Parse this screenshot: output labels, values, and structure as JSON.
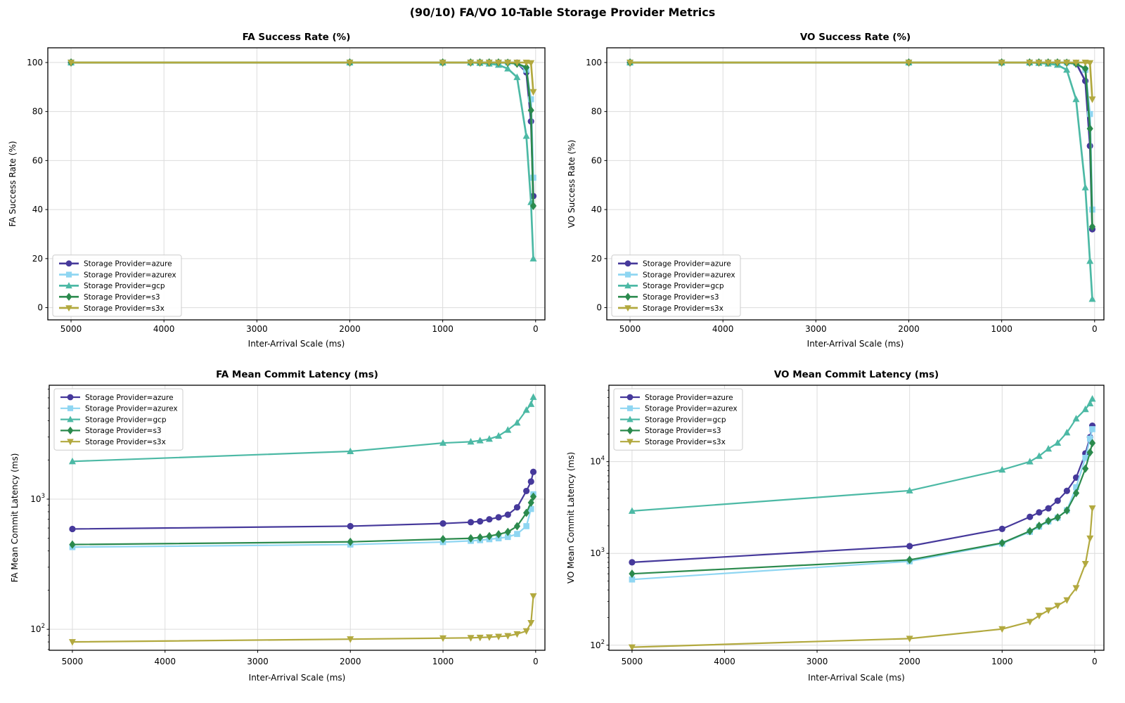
{
  "figure": {
    "suptitle": "(90/10) FA/VO 10-Table Storage Provider Metrics",
    "background": "#ffffff"
  },
  "style": {
    "grid_color": "#dcdcdc",
    "spine_color": "#000000",
    "legend_border": "#cccccc",
    "legend_bg": "#ffffff"
  },
  "series_style": [
    {
      "key": "azure",
      "label": "Storage Provider=azure",
      "color": "#46399B",
      "marker": "circle"
    },
    {
      "key": "azurex",
      "label": "Storage Provider=azurex",
      "color": "#8FD6F2",
      "marker": "square"
    },
    {
      "key": "gcp",
      "label": "Storage Provider=gcp",
      "color": "#4CB9A5",
      "marker": "triangle_up"
    },
    {
      "key": "s3",
      "label": "Storage Provider=s3",
      "color": "#2B8A4D",
      "marker": "diamond"
    },
    {
      "key": "s3x",
      "label": "Storage Provider=s3x",
      "color": "#B2A93F",
      "marker": "triangle_down"
    }
  ],
  "chart_data": [
    {
      "type": "line",
      "title": "FA Success Rate (%)",
      "xlabel": "Inter-Arrival Scale (ms)",
      "ylabel": "FA Success Rate (%)",
      "yscale": "linear",
      "ylim": [
        -5,
        106
      ],
      "yticks": [
        0,
        20,
        40,
        60,
        80,
        100
      ],
      "xlim": [
        5250,
        -100
      ],
      "xticks": [
        5000,
        4000,
        3000,
        2000,
        1000,
        0
      ],
      "x_inverted": true,
      "grid": true,
      "legend_position": "lower-left",
      "x": [
        5000,
        2000,
        1000,
        700,
        600,
        500,
        400,
        300,
        200,
        100,
        50,
        25
      ],
      "series": [
        {
          "name": "Storage Provider=azure",
          "key": "azure",
          "values": [
            100,
            100,
            100,
            100,
            100,
            100,
            100,
            100,
            99.9,
            96,
            76,
            45.5
          ]
        },
        {
          "name": "Storage Provider=azurex",
          "key": "azurex",
          "values": [
            100,
            100,
            100,
            100,
            100,
            100,
            100,
            100,
            99.9,
            97,
            85,
            53
          ]
        },
        {
          "name": "Storage Provider=gcp",
          "key": "gcp",
          "values": [
            100,
            100,
            100,
            100,
            99.8,
            99.5,
            99,
            97.5,
            94,
            70,
            43,
            20
          ]
        },
        {
          "name": "Storage Provider=s3",
          "key": "s3",
          "values": [
            100,
            100,
            100,
            100,
            100,
            100,
            100,
            99.9,
            99.5,
            98,
            80.5,
            41.5
          ]
        },
        {
          "name": "Storage Provider=s3x",
          "key": "s3x",
          "values": [
            100,
            100,
            100,
            100,
            100,
            100,
            100,
            100,
            100,
            100,
            99.8,
            88
          ]
        }
      ]
    },
    {
      "type": "line",
      "title": "VO Success Rate (%)",
      "xlabel": "Inter-Arrival Scale (ms)",
      "ylabel": "VO Success Rate (%)",
      "yscale": "linear",
      "ylim": [
        -5,
        106
      ],
      "yticks": [
        0,
        20,
        40,
        60,
        80,
        100
      ],
      "xlim": [
        5250,
        -100
      ],
      "xticks": [
        5000,
        4000,
        3000,
        2000,
        1000,
        0
      ],
      "x_inverted": true,
      "grid": true,
      "legend_position": "lower-left",
      "x": [
        5000,
        2000,
        1000,
        700,
        600,
        500,
        400,
        300,
        200,
        100,
        50,
        25
      ],
      "series": [
        {
          "name": "Storage Provider=azure",
          "key": "azure",
          "values": [
            100,
            100,
            100,
            100,
            100,
            100,
            100,
            100,
            99.8,
            92.5,
            66,
            32
          ]
        },
        {
          "name": "Storage Provider=azurex",
          "key": "azurex",
          "values": [
            100,
            100,
            100,
            100,
            100,
            100,
            100,
            100,
            99.8,
            97,
            79,
            40
          ]
        },
        {
          "name": "Storage Provider=gcp",
          "key": "gcp",
          "values": [
            100,
            100,
            100,
            100,
            99.8,
            99.5,
            99,
            97,
            85,
            49,
            19,
            3.5
          ]
        },
        {
          "name": "Storage Provider=s3",
          "key": "s3",
          "values": [
            100,
            100,
            100,
            100,
            100,
            100,
            100,
            99.9,
            99.5,
            97.5,
            73,
            33
          ]
        },
        {
          "name": "Storage Provider=s3x",
          "key": "s3x",
          "values": [
            100,
            100,
            100,
            100,
            100,
            100,
            100,
            100,
            100,
            100,
            99.8,
            85
          ]
        }
      ]
    },
    {
      "type": "line",
      "title": "FA Mean Commit Latency (ms)",
      "xlabel": "Inter-Arrival Scale (ms)",
      "ylabel": "FA Mean Commit Latency (ms)",
      "yscale": "log",
      "ylim": [
        69,
        7500
      ],
      "yticks": [
        100,
        1000
      ],
      "xlim": [
        5250,
        -100
      ],
      "xticks": [
        5000,
        4000,
        3000,
        2000,
        1000,
        0
      ],
      "x_inverted": true,
      "grid": true,
      "legend_position": "upper-left",
      "x": [
        5000,
        2000,
        1000,
        700,
        600,
        500,
        400,
        300,
        200,
        100,
        50,
        25
      ],
      "series": [
        {
          "name": "Storage Provider=azure",
          "key": "azure",
          "values": [
            590,
            620,
            650,
            665,
            675,
            700,
            725,
            760,
            865,
            1155,
            1365,
            1620
          ]
        },
        {
          "name": "Storage Provider=azurex",
          "key": "azurex",
          "values": [
            428,
            448,
            468,
            478,
            484,
            492,
            500,
            512,
            540,
            620,
            840,
            1090
          ]
        },
        {
          "name": "Storage Provider=gcp",
          "key": "gcp",
          "values": [
            1950,
            2330,
            2700,
            2760,
            2820,
            2900,
            3060,
            3400,
            3860,
            4840,
            5370,
            6080
          ]
        },
        {
          "name": "Storage Provider=s3",
          "key": "s3",
          "values": [
            448,
            470,
            493,
            500,
            508,
            520,
            537,
            560,
            620,
            785,
            940,
            1045
          ]
        },
        {
          "name": "Storage Provider=s3x",
          "key": "s3x",
          "values": [
            80,
            84,
            85.5,
            86,
            86.5,
            87,
            88,
            89,
            92,
            97,
            112,
            180
          ]
        }
      ]
    },
    {
      "type": "line",
      "title": "VO Mean Commit Latency (ms)",
      "xlabel": "Inter-Arrival Scale (ms)",
      "ylabel": "VO Mean Commit Latency (ms)",
      "yscale": "log",
      "ylim": [
        88,
        68000
      ],
      "yticks": [
        100,
        1000,
        10000
      ],
      "xlim": [
        5250,
        -100
      ],
      "xticks": [
        5000,
        4000,
        3000,
        2000,
        1000,
        0
      ],
      "x_inverted": true,
      "grid": true,
      "legend_position": "upper-left",
      "x": [
        5000,
        2000,
        1000,
        700,
        600,
        500,
        400,
        300,
        200,
        100,
        50,
        25
      ],
      "series": [
        {
          "name": "Storage Provider=azure",
          "key": "azure",
          "values": [
            800,
            1200,
            1850,
            2500,
            2800,
            3100,
            3750,
            4800,
            6700,
            12300,
            18500,
            24600
          ]
        },
        {
          "name": "Storage Provider=azurex",
          "key": "azurex",
          "values": [
            520,
            820,
            1280,
            1720,
            1960,
            2230,
            2450,
            2950,
            5270,
            11000,
            17800,
            22600
          ]
        },
        {
          "name": "Storage Provider=gcp",
          "key": "gcp",
          "values": [
            2900,
            4830,
            8150,
            10000,
            11500,
            13800,
            16000,
            20700,
            29400,
            37200,
            43000,
            48300
          ]
        },
        {
          "name": "Storage Provider=s3",
          "key": "s3",
          "values": [
            600,
            850,
            1300,
            1750,
            2000,
            2260,
            2470,
            2940,
            4550,
            8390,
            12630,
            15950
          ]
        },
        {
          "name": "Storage Provider=s3x",
          "key": "s3x",
          "values": [
            95,
            118,
            150,
            180,
            210,
            240,
            270,
            310,
            420,
            770,
            1460,
            3110
          ]
        }
      ]
    }
  ]
}
